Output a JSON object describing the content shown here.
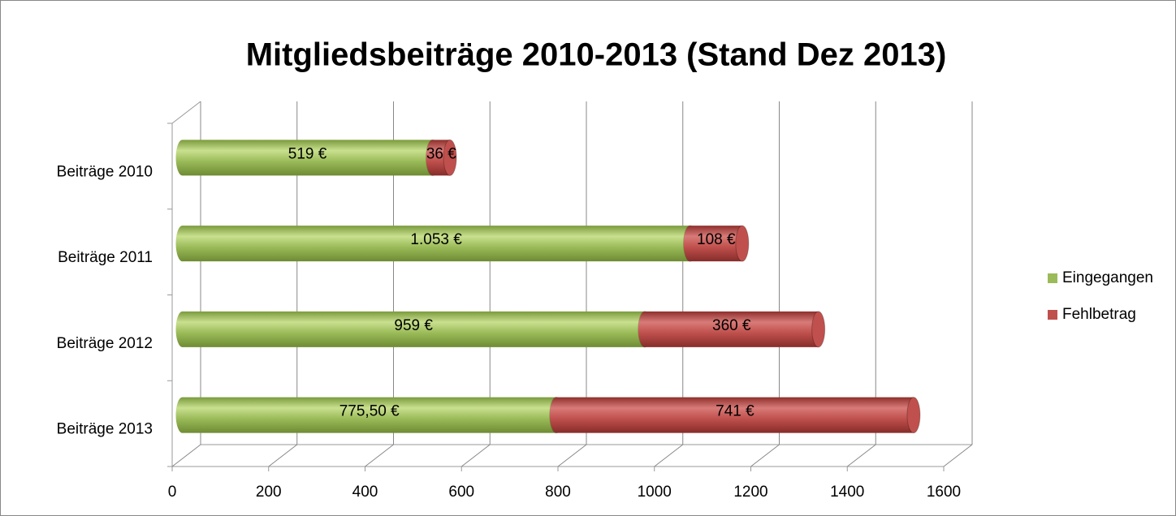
{
  "chart_data": {
    "type": "bar",
    "orientation": "horizontal",
    "stacked": true,
    "title": "Mitgliedsbeiträge 2010-2013 (Stand Dez 2013)",
    "categories": [
      "Beiträge 2010",
      "Beiträge 2011",
      "Beiträge 2012",
      "Beiträge 2013"
    ],
    "series": [
      {
        "name": "Eingegangen",
        "color": "#9bbb59",
        "values": [
          519,
          1053,
          959,
          775.5
        ],
        "value_labels": [
          "519 €",
          "1.053 €",
          "959 €",
          "775,50 €"
        ]
      },
      {
        "name": "Fehlbetrag",
        "color": "#c0504d",
        "values": [
          36,
          108,
          360,
          741
        ],
        "value_labels": [
          "36 €",
          "108 €",
          "360 €",
          "741 €"
        ]
      }
    ],
    "xlim": [
      0,
      1600
    ],
    "xticks": [
      0,
      200,
      400,
      600,
      800,
      1000,
      1200,
      1400,
      1600
    ],
    "grid": true,
    "legend": "right"
  }
}
